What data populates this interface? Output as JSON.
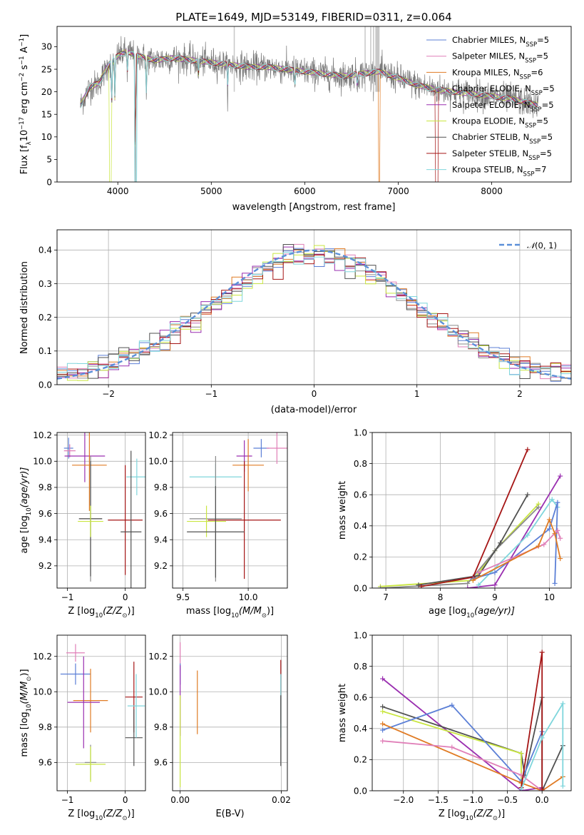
{
  "figure_title": "PLATE=1649, MJD=53149, FIBERID=0311, z=0.064",
  "colors": {
    "Chabrier MILES": "#5b7fd6",
    "Salpeter MILES": "#e07fb8",
    "Kroupa MILES": "#e07b24",
    "Chabrier ELODIE": "#8a8a8a",
    "Salpeter ELODIE": "#9a2fb0",
    "Kroupa ELODIE": "#c9e640",
    "Chabrier STELIB": "#505050",
    "Salpeter STELIB": "#a51515",
    "Kroupa STELIB": "#7fd6dc",
    "normal": "#5b8fd8"
  },
  "chart_data": [
    {
      "id": "spectrum",
      "type": "line",
      "title": "PLATE=1649, MJD=53149, FIBERID=0311, z=0.064",
      "xlabel": "wavelength [Angstrom, rest frame]",
      "ylabel_parts": [
        "Flux [f",
        "λ",
        "10",
        "−17",
        " erg cm",
        "−2",
        " s",
        "−1",
        " A",
        "−1",
        "]"
      ],
      "xlim": [
        3350,
        8850
      ],
      "ylim": [
        0,
        34.5
      ],
      "xticks": [
        4000,
        5000,
        6000,
        7000,
        8000
      ],
      "yticks": [
        0,
        5,
        10,
        15,
        20,
        25,
        30
      ],
      "grid": false,
      "legend_position": "top-right",
      "legend": [
        {
          "name": "Chabrier MILES",
          "label": "Chabrier MILES, N",
          "sub": "SSP",
          "suffix": "=5"
        },
        {
          "name": "Salpeter MILES",
          "label": "Salpeter MILES, N",
          "sub": "SSP",
          "suffix": "=5"
        },
        {
          "name": "Kroupa MILES",
          "label": "Kroupa MILES, N",
          "sub": "SSP",
          "suffix": "=6"
        },
        {
          "name": "Chabrier ELODIE",
          "label": "Chabrier ELODIE, N",
          "sub": "SSP",
          "suffix": "=5"
        },
        {
          "name": "Salpeter ELODIE",
          "label": "Salpeter ELODIE, N",
          "sub": "SSP",
          "suffix": "=5"
        },
        {
          "name": "Kroupa ELODIE",
          "label": "Kroupa ELODIE, N",
          "sub": "SSP",
          "suffix": "=5"
        },
        {
          "name": "Chabrier STELIB",
          "label": "Chabrier STELIB, N",
          "sub": "SSP",
          "suffix": "=5"
        },
        {
          "name": "Salpeter STELIB",
          "label": "Salpeter STELIB, N",
          "sub": "SSP",
          "suffix": "=5"
        },
        {
          "name": "Kroupa STELIB",
          "label": "Kroupa STELIB, N",
          "sub": "SSP",
          "suffix": "=7"
        }
      ],
      "continuum": {
        "x": [
          3600,
          3700,
          3800,
          3900,
          4000,
          4100,
          4200,
          4400,
          4600,
          4800,
          5000,
          5200,
          5400,
          5600,
          5800,
          6000,
          6200,
          6400,
          6600,
          6800,
          7000,
          7200,
          7400,
          7600,
          7800,
          8000,
          8200,
          8400,
          8500
        ],
        "y": [
          17,
          21,
          22,
          26,
          28,
          29,
          28,
          27,
          27.5,
          27,
          26.5,
          26,
          25.5,
          25.5,
          25,
          24.5,
          24,
          23.5,
          24,
          24.5,
          23,
          21.5,
          20.5,
          20,
          19.5,
          19,
          18.5,
          17.5,
          17
        ]
      },
      "absorption_lines": [
        {
          "x": 3934,
          "depth": 11
        },
        {
          "x": 3969,
          "depth": 10
        },
        {
          "x": 4102,
          "depth": 5
        },
        {
          "x": 4187,
          "depth": 29
        },
        {
          "x": 4306,
          "depth": 9
        },
        {
          "x": 4861,
          "depth": 4
        },
        {
          "x": 5175,
          "depth": 5
        },
        {
          "x": 5893,
          "depth": 4
        },
        {
          "x": 6563,
          "depth": 3
        }
      ],
      "model_dropouts": [
        {
          "series": "Kroupa ELODIE",
          "x": [
            3915,
            3925
          ]
        },
        {
          "series": "Kroupa STELIB",
          "x": [
            4185,
            4200
          ]
        },
        {
          "series": "Kroupa MILES",
          "x": [
            6790,
            6800
          ]
        },
        {
          "series": "Salpeter STELIB",
          "x": [
            7400,
            7425
          ]
        }
      ],
      "masked_regions": [
        [
          5240,
          5250
        ],
        [
          6640,
          6650
        ],
        [
          6700,
          6710
        ],
        [
          6730,
          6740
        ],
        [
          6755,
          6800
        ]
      ]
    },
    {
      "id": "residuals",
      "type": "histogram",
      "xlabel": "(data-model)/error",
      "ylabel": "Normed distribution",
      "xlim": [
        -2.5,
        2.5
      ],
      "ylim": [
        0,
        0.46
      ],
      "xticks": [
        -2,
        -1,
        0,
        1,
        2
      ],
      "yticks": [
        0,
        0.1,
        0.2,
        0.3,
        0.4
      ],
      "xtick_labels": [
        "−2",
        "−1",
        "0",
        "1",
        "2"
      ],
      "ytick_labels": [
        "0.0",
        "0.1",
        "0.2",
        "0.3",
        "0.4"
      ],
      "grid": true,
      "legend_position": "top-right",
      "legend_parts": [
        "𝒩",
        "(0, 1)"
      ],
      "bin_width": 0.1,
      "normal_curve": {
        "mean": 0,
        "sigma": 1
      }
    },
    {
      "id": "age_vs_Z",
      "type": "errorbar",
      "xlabel_parts": [
        "Z [log",
        "10",
        "(Z/Z",
        "⊙",
        ")]"
      ],
      "ylabel_parts": [
        "age  [log",
        "10",
        "(age/yr)]"
      ],
      "xlim": [
        -1.18,
        0.35
      ],
      "ylim": [
        9.03,
        10.22
      ],
      "xticks": [
        -1,
        0
      ],
      "xtick_labels": [
        "−1",
        "0"
      ],
      "yticks": [
        9.2,
        9.4,
        9.6,
        9.8,
        10.0,
        10.2
      ],
      "ytick_labels": [
        "9.2",
        "9.4",
        "9.6",
        "9.8",
        "10.0",
        "10.2"
      ],
      "grid": true,
      "points": [
        {
          "series": "Chabrier MILES",
          "x": -0.98,
          "xerr": 0.08,
          "y": 10.1,
          "yerr": 0.08
        },
        {
          "series": "Salpeter MILES",
          "x": -0.96,
          "xerr": 0.1,
          "y": 10.08,
          "yerr": 0.05
        },
        {
          "series": "Salpeter ELODIE",
          "x": -0.7,
          "xerr": 0.35,
          "y": 10.04,
          "yerr": 0.2
        },
        {
          "series": "Kroupa MILES",
          "x": -0.62,
          "xerr": 0.3,
          "y": 9.97,
          "yerr": 0.35
        },
        {
          "series": "Chabrier ELODIE",
          "x": -0.6,
          "xerr": 0.2,
          "y": 9.56,
          "yerr": 0.48
        },
        {
          "series": "Chabrier STELIB",
          "x": -0.6,
          "xerr": 0.2,
          "y": 9.56,
          "yerr": 0.44
        },
        {
          "series": "Kroupa ELODIE",
          "x": -0.6,
          "xerr": 0.22,
          "y": 9.54,
          "yerr": 0.12
        },
        {
          "series": "Salpeter STELIB",
          "x": 0.0,
          "xerr": 0.3,
          "y": 9.55,
          "yerr": 0.42
        },
        {
          "series": "Kroupa STELIB",
          "x": 0.2,
          "xerr": 0.18,
          "y": 9.88,
          "yerr": 0.14
        },
        {
          "series": "Chabrier STELIB",
          "x": 0.1,
          "xerr": 0.18,
          "y": 9.46,
          "yerr": 0.62
        }
      ]
    },
    {
      "id": "age_vs_mass",
      "type": "errorbar",
      "xlabel_parts": [
        "mass [log",
        "10",
        "(M/M",
        "⊙",
        ")]"
      ],
      "xlim": [
        9.42,
        10.3
      ],
      "ylim": [
        9.03,
        10.22
      ],
      "xticks": [
        9.5,
        10.0
      ],
      "xtick_labels": [
        "9.5",
        "10.0"
      ],
      "yticks": [
        9.2,
        9.4,
        9.6,
        9.8,
        10.0,
        10.2
      ],
      "ytick_labels": [
        "9.2",
        "9.4",
        "9.6",
        "9.8",
        "10.0",
        "10.2"
      ],
      "grid": true,
      "points": [
        {
          "series": "Chabrier MILES",
          "x": 10.1,
          "xerr": 0.06,
          "y": 10.1,
          "yerr": 0.07
        },
        {
          "series": "Salpeter MILES",
          "x": 10.22,
          "xerr": 0.08,
          "y": 10.1,
          "yerr": 0.12
        },
        {
          "series": "Salpeter ELODIE",
          "x": 9.97,
          "xerr": 0.06,
          "y": 10.04,
          "yerr": 0.12
        },
        {
          "series": "Kroupa MILES",
          "x": 10.0,
          "xerr": 0.12,
          "y": 9.97,
          "yerr": 0.2
        },
        {
          "series": "Kroupa STELIB",
          "x": 9.75,
          "xerr": 0.2,
          "y": 9.88,
          "yerr": 0.1
        },
        {
          "series": "Chabrier ELODIE",
          "x": 9.75,
          "xerr": 0.2,
          "y": 9.56,
          "yerr": 0.48
        },
        {
          "series": "Kroupa ELODIE",
          "x": 9.68,
          "xerr": 0.15,
          "y": 9.54,
          "yerr": 0.12
        },
        {
          "series": "Salpeter STELIB",
          "x": 9.97,
          "xerr": 0.28,
          "y": 9.55,
          "yerr": 0.45
        },
        {
          "series": "Chabrier STELIB",
          "x": 9.75,
          "xerr": 0.22,
          "y": 9.46,
          "yerr": 0.35
        }
      ]
    },
    {
      "id": "mass_weight_vs_age",
      "type": "line",
      "xlabel_parts": [
        "age  [log",
        "10",
        "(age/yr)]"
      ],
      "ylabel": "mass weight",
      "xlim": [
        6.75,
        10.4
      ],
      "ylim": [
        0,
        1
      ],
      "xticks": [
        7,
        8,
        9,
        10
      ],
      "yticks": [
        0,
        0.2,
        0.4,
        0.6,
        0.8,
        1.0
      ],
      "ytick_labels": [
        "0.0",
        "0.2",
        "0.4",
        "0.6",
        "0.8",
        "1.0"
      ],
      "grid": true,
      "series": [
        {
          "name": "Kroupa ELODIE",
          "x": [
            6.9,
            8.6,
            9.0,
            9.8
          ],
          "y": [
            0.01,
            0.05,
            0.24,
            0.54
          ]
        },
        {
          "name": "Chabrier ELODIE",
          "x": [
            6.9,
            8.5,
            9.0,
            9.8
          ],
          "y": [
            0.0,
            0.03,
            0.24,
            0.52
          ]
        },
        {
          "name": "Chabrier STELIB",
          "x": [
            7.6,
            8.7,
            9.1,
            9.6
          ],
          "y": [
            0.02,
            0.08,
            0.29,
            0.6
          ]
        },
        {
          "name": "Salpeter STELIB",
          "x": [
            7.65,
            8.6,
            9.6
          ],
          "y": [
            0.01,
            0.07,
            0.89
          ]
        },
        {
          "name": "Salpeter ELODIE",
          "x": [
            8.5,
            9.0,
            10.2
          ],
          "y": [
            0.0,
            0.02,
            0.72
          ]
        },
        {
          "name": "Kroupa STELIB",
          "x": [
            8.7,
            9.6,
            10.05,
            10.15
          ],
          "y": [
            0.02,
            0.34,
            0.57,
            0.52
          ]
        },
        {
          "name": "Chabrier MILES",
          "x": [
            8.6,
            9.0,
            10.0,
            10.15,
            10.1
          ],
          "y": [
            0.06,
            0.1,
            0.38,
            0.55,
            0.03
          ]
        },
        {
          "name": "Salpeter MILES",
          "x": [
            8.7,
            9.9,
            10.15,
            10.2
          ],
          "y": [
            0.1,
            0.28,
            0.37,
            0.32
          ]
        },
        {
          "name": "Kroupa MILES",
          "x": [
            8.6,
            9.8,
            10.0,
            10.1,
            10.2
          ],
          "y": [
            0.05,
            0.27,
            0.44,
            0.35,
            0.19
          ]
        }
      ]
    },
    {
      "id": "mass_vs_Z",
      "type": "errorbar",
      "xlabel_parts": [
        "Z [log",
        "10",
        "(Z/Z",
        "⊙",
        ")]"
      ],
      "ylabel_parts": [
        "mass [log",
        "10",
        "(M/M",
        "⊙",
        ")]"
      ],
      "xlim": [
        -1.18,
        0.35
      ],
      "ylim": [
        9.44,
        10.32
      ],
      "xticks": [
        -1,
        0
      ],
      "xtick_labels": [
        "−1",
        "0"
      ],
      "yticks": [
        9.6,
        9.8,
        10.0,
        10.2
      ],
      "ytick_labels": [
        "9.6",
        "9.8",
        "10.0",
        "10.2"
      ],
      "grid": true,
      "points": [
        {
          "series": "Salpeter MILES",
          "x": -0.86,
          "xerr": 0.16,
          "y": 10.22,
          "yerr": 0.05
        },
        {
          "series": "Chabrier MILES",
          "x": -0.86,
          "xerr": 0.26,
          "y": 10.1,
          "yerr": 0.06
        },
        {
          "series": "Kroupa MILES",
          "x": -0.6,
          "xerr": 0.3,
          "y": 9.95,
          "yerr": 0.18
        },
        {
          "series": "Salpeter ELODIE",
          "x": -0.72,
          "xerr": 0.28,
          "y": 9.94,
          "yerr": 0.26
        },
        {
          "series": "Chabrier ELODIE",
          "x": -0.6,
          "xerr": 0.1,
          "y": 9.6,
          "yerr": 0.1
        },
        {
          "series": "Kroupa ELODIE",
          "x": -0.6,
          "xerr": 0.26,
          "y": 9.59,
          "yerr": 0.1
        },
        {
          "series": "Salpeter STELIB",
          "x": 0.15,
          "xerr": 0.15,
          "y": 9.97,
          "yerr": 0.2
        },
        {
          "series": "Chabrier STELIB",
          "x": 0.15,
          "xerr": 0.15,
          "y": 9.74,
          "yerr": 0.16
        },
        {
          "series": "Kroupa STELIB",
          "x": 0.19,
          "xerr": 0.15,
          "y": 9.92,
          "yerr": 0.18
        }
      ]
    },
    {
      "id": "mass_vs_ebv",
      "type": "errorbar",
      "xlabel": "E(B-V)",
      "xlim": [
        -0.0015,
        0.0212
      ],
      "ylim": [
        9.44,
        10.32
      ],
      "xticks": [
        0.0,
        0.02
      ],
      "xtick_labels": [
        "0.00",
        "0.02"
      ],
      "yticks": [
        9.6,
        9.8,
        10.0,
        10.2
      ],
      "ytick_labels": [
        "9.6",
        "9.8",
        "10.0",
        "10.2"
      ],
      "grid": true,
      "points": [
        {
          "series": "Salpeter MILES",
          "x": 0.0,
          "xerr": 0,
          "y": 10.2,
          "yerr": 0.08
        },
        {
          "series": "Chabrier MILES",
          "x": 0.0,
          "xerr": 0,
          "y": 10.1,
          "yerr": 0.06
        },
        {
          "series": "Salpeter ELODIE",
          "x": 0.0,
          "xerr": 0,
          "y": 9.95,
          "yerr": 0.2
        },
        {
          "series": "Kroupa ELODIE",
          "x": 0.0,
          "xerr": 0,
          "y": 9.72,
          "yerr": 0.26
        },
        {
          "series": "Kroupa MILES",
          "x": 0.0034,
          "xerr": 0,
          "y": 9.94,
          "yerr": 0.18
        },
        {
          "series": "Salpeter STELIB",
          "x": 0.0199,
          "xerr": 0,
          "y": 10.0,
          "yerr": 0.18
        },
        {
          "series": "Kroupa STELIB",
          "x": 0.0199,
          "xerr": 0,
          "y": 9.92,
          "yerr": 0.18
        },
        {
          "series": "Chabrier STELIB",
          "x": 0.0199,
          "xerr": 0,
          "y": 9.78,
          "yerr": 0.2
        }
      ]
    },
    {
      "id": "mass_weight_vs_Z",
      "type": "line",
      "xlabel_parts": [
        "Z [log",
        "10",
        "(Z/Z",
        "⊙",
        ")]"
      ],
      "ylabel": "mass weight",
      "xlim": [
        -2.45,
        0.42
      ],
      "ylim": [
        0,
        1
      ],
      "xticks": [
        -2.0,
        -1.5,
        -1.0,
        -0.5,
        0.0
      ],
      "xtick_labels": [
        "−2.0",
        "−1.5",
        "−1.0",
        "−0.5",
        "0.0"
      ],
      "yticks": [
        0,
        0.2,
        0.4,
        0.6,
        0.8,
        1.0
      ],
      "ytick_labels": [
        "0.0",
        "0.2",
        "0.4",
        "0.6",
        "0.8",
        "1.0"
      ],
      "grid": true,
      "series": [
        {
          "name": "Salpeter ELODIE",
          "x": [
            -2.3,
            -0.3,
            0.0
          ],
          "y": [
            0.72,
            0.0,
            0.02
          ]
        },
        {
          "name": "Chabrier STELIB",
          "x": [
            -2.3,
            -0.3,
            -0.25,
            0.0,
            0.0,
            0.3
          ],
          "y": [
            0.54,
            0.24,
            0.1,
            0.6,
            0.0,
            0.29
          ]
        },
        {
          "name": "Kroupa ELODIE",
          "x": [
            -2.3,
            -0.3,
            -0.3
          ],
          "y": [
            0.51,
            0.24,
            0.05
          ]
        },
        {
          "name": "Chabrier MILES",
          "x": [
            -2.3,
            -1.3,
            -0.3,
            0.0
          ],
          "y": [
            0.39,
            0.55,
            0.06,
            0.38
          ]
        },
        {
          "name": "Kroupa MILES",
          "x": [
            -2.3,
            -0.3,
            0.0,
            0.3
          ],
          "y": [
            0.43,
            0.05,
            0.0,
            0.09
          ]
        },
        {
          "name": "Salpeter MILES",
          "x": [
            -2.3,
            -1.3,
            -0.3,
            0.0
          ],
          "y": [
            0.32,
            0.28,
            0.1,
            0.0
          ]
        },
        {
          "name": "Salpeter STELIB",
          "x": [
            -0.3,
            0.0,
            0.0
          ],
          "y": [
            0.02,
            0.89,
            0.01
          ]
        },
        {
          "name": "Kroupa STELIB",
          "x": [
            -0.3,
            0.0,
            0.3,
            0.3
          ],
          "y": [
            0.01,
            0.34,
            0.56,
            0.03
          ]
        }
      ]
    }
  ]
}
